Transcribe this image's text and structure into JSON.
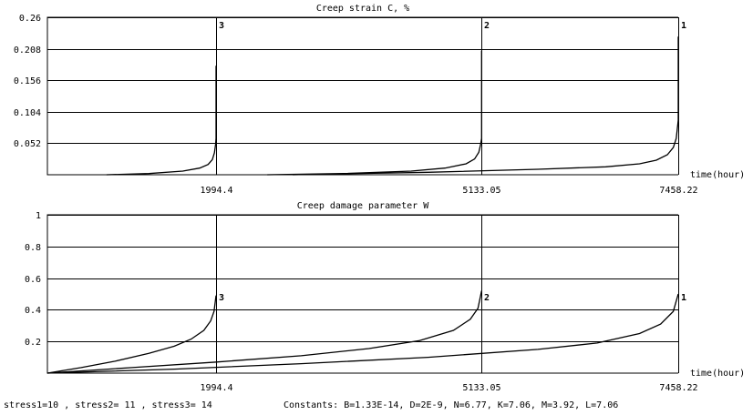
{
  "chart_data": [
    {
      "type": "line",
      "title": "Creep strain C, %",
      "xlabel": "time(hour)",
      "ylabel": "",
      "ylim": [
        0,
        0.26
      ],
      "y_ticks": [
        "0.052",
        "0.104",
        "0.156",
        "0.208",
        "0.26"
      ],
      "y_tick_values": [
        0.052,
        0.104,
        0.156,
        0.208,
        0.26
      ],
      "xlim": [
        0,
        7458.22
      ],
      "x_ticks": [
        "1994.4",
        "5133.05",
        "7458.22"
      ],
      "x_tick_values": [
        1994.4,
        5133.05,
        7458.22
      ],
      "grid": true,
      "markers": [
        {
          "label": "3",
          "x": 1994.4
        },
        {
          "label": "2",
          "x": 5133.05
        },
        {
          "label": "1",
          "x": 7458.22
        }
      ],
      "series": [
        {
          "label": "3",
          "x": [
            700,
            1200,
            1600,
            1800,
            1900,
            1950,
            1975,
            1988,
            1994.4,
            1994.4
          ],
          "y": [
            0.0,
            0.002,
            0.006,
            0.011,
            0.017,
            0.025,
            0.036,
            0.05,
            0.06,
            0.18
          ]
        },
        {
          "label": "2",
          "x": [
            2600,
            3500,
            4300,
            4700,
            4950,
            5050,
            5100,
            5122,
            5133.05,
            5133.05
          ],
          "y": [
            0.0,
            0.002,
            0.006,
            0.011,
            0.018,
            0.026,
            0.037,
            0.05,
            0.06,
            0.205
          ]
        },
        {
          "label": "1",
          "x": [
            2900,
            4500,
            5800,
            6600,
            7000,
            7200,
            7330,
            7400,
            7435,
            7458.22,
            7458.22
          ],
          "y": [
            0.0,
            0.004,
            0.009,
            0.013,
            0.018,
            0.024,
            0.033,
            0.045,
            0.06,
            0.09,
            0.228
          ]
        }
      ]
    },
    {
      "type": "line",
      "title": "Creep damage parameter W",
      "xlabel": "time(hour)",
      "ylabel": "",
      "ylim": [
        0,
        1
      ],
      "y_ticks": [
        "0.2",
        "0.4",
        "0.6",
        "0.8",
        "1"
      ],
      "y_tick_values": [
        0.2,
        0.4,
        0.6,
        0.8,
        1
      ],
      "xlim": [
        0,
        7458.22
      ],
      "x_ticks": [
        "1994.4",
        "5133.05",
        "7458.22"
      ],
      "x_tick_values": [
        1994.4,
        5133.05,
        7458.22
      ],
      "grid": true,
      "markers": [
        {
          "label": "3",
          "x": 1994.4
        },
        {
          "label": "2",
          "x": 5133.05
        },
        {
          "label": "1",
          "x": 7458.22
        }
      ],
      "series": [
        {
          "label": "3",
          "x": [
            0,
            400,
            800,
            1200,
            1500,
            1700,
            1850,
            1930,
            1970,
            1994.4
          ],
          "y": [
            0,
            0.035,
            0.075,
            0.125,
            0.17,
            0.215,
            0.27,
            0.33,
            0.39,
            0.49
          ]
        },
        {
          "label": "2",
          "x": [
            0,
            1000,
            2000,
            3000,
            3800,
            4400,
            4800,
            5000,
            5090,
            5133.05
          ],
          "y": [
            0,
            0.035,
            0.07,
            0.11,
            0.155,
            0.205,
            0.27,
            0.34,
            0.41,
            0.52
          ]
        },
        {
          "label": "1",
          "x": [
            0,
            1500,
            3000,
            4500,
            5800,
            6500,
            7000,
            7250,
            7400,
            7458.22
          ],
          "y": [
            0,
            0.025,
            0.06,
            0.1,
            0.15,
            0.19,
            0.25,
            0.31,
            0.39,
            0.5
          ]
        }
      ]
    }
  ],
  "footer": {
    "stresses": "stress1=10 , stress2= 11 , stress3= 14",
    "constants": "Constants: B=1.33E-14, D=2E-9, N=6.77, K=7.06, M=3.92, L=7.06"
  }
}
